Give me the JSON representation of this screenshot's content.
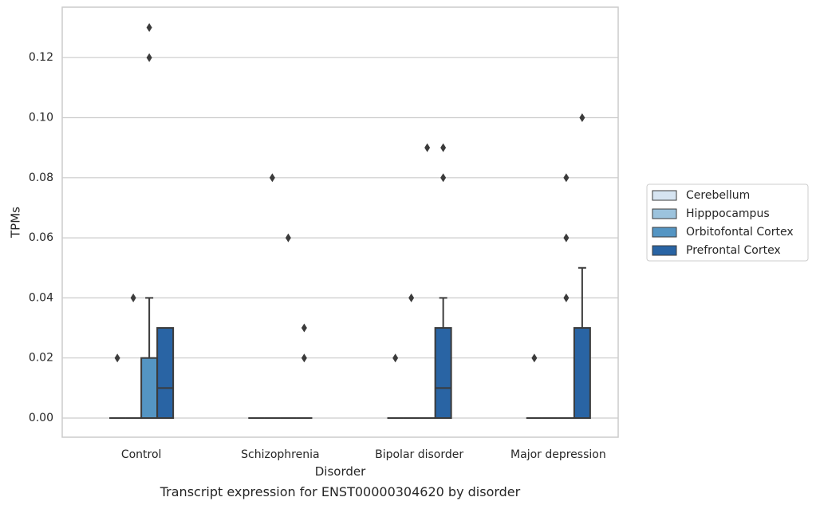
{
  "chart_data": {
    "type": "box",
    "title": "",
    "caption": "Transcript expression for ENST00000304620 by disorder",
    "xlabel": "Disorder",
    "ylabel": "TPMs",
    "ylim": [
      -0.0065,
      0.1365
    ],
    "yticks": [
      "0.00",
      "0.02",
      "0.04",
      "0.06",
      "0.08",
      "0.10",
      "0.12"
    ],
    "ytick_values": [
      0,
      0.02,
      0.04,
      0.06,
      0.08,
      0.1,
      0.12
    ],
    "grid": true,
    "legend_position": "right",
    "categories": [
      "Control",
      "Schizophrenia",
      "Bipolar disorder",
      "Major depression"
    ],
    "series": [
      {
        "name": "Cerebellum",
        "color": "#d6e4f1",
        "boxes": [
          {
            "q1": 0,
            "median": 0,
            "q3": 0,
            "whisker_low": 0,
            "whisker_high": 0,
            "outliers": [
              0.02
            ]
          },
          {
            "q1": 0,
            "median": 0,
            "q3": 0,
            "whisker_low": 0,
            "whisker_high": 0,
            "outliers": []
          },
          {
            "q1": 0,
            "median": 0,
            "q3": 0,
            "whisker_low": 0,
            "whisker_high": 0,
            "outliers": [
              0.02
            ]
          },
          {
            "q1": 0,
            "median": 0,
            "q3": 0,
            "whisker_low": 0,
            "whisker_high": 0,
            "outliers": [
              0.02
            ]
          }
        ]
      },
      {
        "name": "Hipppocampus",
        "color": "#9cc3dd",
        "boxes": [
          {
            "q1": 0,
            "median": 0,
            "q3": 0,
            "whisker_low": 0,
            "whisker_high": 0,
            "outliers": [
              0.04
            ]
          },
          {
            "q1": 0,
            "median": 0,
            "q3": 0,
            "whisker_low": 0,
            "whisker_high": 0,
            "outliers": [
              0.08
            ]
          },
          {
            "q1": 0,
            "median": 0,
            "q3": 0,
            "whisker_low": 0,
            "whisker_high": 0,
            "outliers": [
              0.04
            ]
          },
          {
            "q1": 0,
            "median": 0,
            "q3": 0,
            "whisker_low": 0,
            "whisker_high": 0,
            "outliers": []
          }
        ]
      },
      {
        "name": "Orbitofontal Cortex",
        "color": "#5495c3",
        "boxes": [
          {
            "q1": 0,
            "median": 0,
            "q3": 0.02,
            "whisker_low": 0,
            "whisker_high": 0.04,
            "outliers": [
              0.12,
              0.13
            ]
          },
          {
            "q1": 0,
            "median": 0,
            "q3": 0,
            "whisker_low": 0,
            "whisker_high": 0,
            "outliers": [
              0.06
            ]
          },
          {
            "q1": 0,
            "median": 0,
            "q3": 0,
            "whisker_low": 0,
            "whisker_high": 0,
            "outliers": [
              0.09
            ]
          },
          {
            "q1": 0,
            "median": 0,
            "q3": 0,
            "whisker_low": 0,
            "whisker_high": 0,
            "outliers": [
              0.04,
              0.06,
              0.08
            ]
          }
        ]
      },
      {
        "name": "Prefrontal Cortex",
        "color": "#2964a4",
        "boxes": [
          {
            "q1": 0,
            "median": 0.01,
            "q3": 0.03,
            "whisker_low": 0,
            "whisker_high": 0.03,
            "outliers": []
          },
          {
            "q1": 0,
            "median": 0,
            "q3": 0,
            "whisker_low": 0,
            "whisker_high": 0,
            "outliers": [
              0.02,
              0.03
            ]
          },
          {
            "q1": 0,
            "median": 0.01,
            "q3": 0.03,
            "whisker_low": 0,
            "whisker_high": 0.04,
            "outliers": [
              0.08,
              0.09
            ]
          },
          {
            "q1": 0,
            "median": 0,
            "q3": 0.03,
            "whisker_low": 0,
            "whisker_high": 0.05,
            "outliers": [
              0.1
            ]
          }
        ]
      }
    ]
  }
}
